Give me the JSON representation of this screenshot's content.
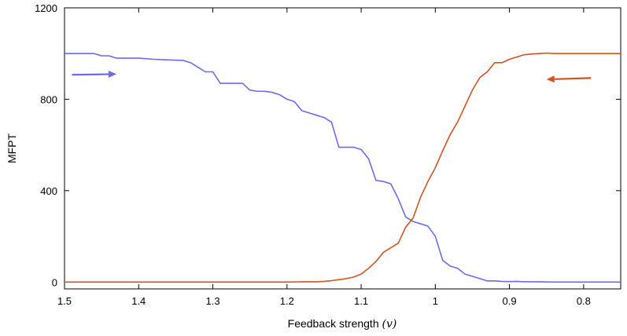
{
  "chart_data": {
    "type": "line",
    "title": "",
    "xlabel": "Feedback strength",
    "xlabel_symbol": "(v)",
    "ylabel": "MFPT",
    "xlim": [
      1.5,
      0.75
    ],
    "x_reversed": true,
    "ylim": [
      -30,
      1200
    ],
    "x_ticks": [
      1.5,
      1.4,
      1.3,
      1.2,
      1.1,
      1.0,
      0.9,
      0.8
    ],
    "x_tick_labels": [
      "1.5",
      "1.4",
      "1.3",
      "1.2",
      "1.1",
      "1",
      "0.9",
      "0.8"
    ],
    "y_ticks": [
      0,
      400,
      800,
      1200
    ],
    "y_tick_labels": [
      "0",
      "400",
      "800",
      "1200"
    ],
    "grid": false,
    "series": [
      {
        "color": "#6b6beb",
        "direction": "decreasing-v",
        "x": [
          1.5,
          1.47,
          1.46,
          1.45,
          1.44,
          1.43,
          1.42,
          1.4,
          1.38,
          1.36,
          1.34,
          1.33,
          1.32,
          1.31,
          1.3,
          1.29,
          1.28,
          1.27,
          1.26,
          1.25,
          1.24,
          1.23,
          1.22,
          1.21,
          1.2,
          1.19,
          1.18,
          1.17,
          1.16,
          1.15,
          1.14,
          1.13,
          1.12,
          1.11,
          1.1,
          1.09,
          1.08,
          1.07,
          1.06,
          1.05,
          1.04,
          1.03,
          1.02,
          1.01,
          1.0,
          0.99,
          0.98,
          0.97,
          0.96,
          0.95,
          0.94,
          0.93,
          0.92,
          0.91,
          0.9,
          0.89,
          0.88,
          0.86,
          0.84,
          0.82,
          0.8,
          0.78,
          0.75
        ],
        "y": [
          1000,
          1000,
          1000,
          990,
          990,
          980,
          980,
          980,
          975,
          972,
          970,
          960,
          940,
          920,
          920,
          870,
          870,
          870,
          870,
          840,
          835,
          835,
          830,
          820,
          800,
          790,
          750,
          740,
          730,
          720,
          700,
          590,
          590,
          590,
          580,
          540,
          445,
          440,
          430,
          365,
          285,
          265,
          255,
          245,
          200,
          95,
          70,
          60,
          35,
          25,
          15,
          5,
          5,
          3,
          2,
          3,
          1,
          1,
          0,
          0,
          0,
          0,
          0
        ]
      },
      {
        "color": "#d2531f",
        "direction": "increasing-v",
        "x": [
          1.5,
          1.45,
          1.4,
          1.35,
          1.3,
          1.25,
          1.2,
          1.18,
          1.16,
          1.15,
          1.14,
          1.12,
          1.11,
          1.1,
          1.09,
          1.08,
          1.07,
          1.06,
          1.05,
          1.04,
          1.03,
          1.02,
          1.01,
          1.0,
          0.99,
          0.98,
          0.97,
          0.96,
          0.95,
          0.94,
          0.93,
          0.92,
          0.91,
          0.9,
          0.89,
          0.88,
          0.87,
          0.86,
          0.85,
          0.84,
          0.8,
          0.75
        ],
        "y": [
          0,
          0,
          0,
          0,
          0,
          0,
          0,
          1,
          1,
          3,
          6,
          15,
          22,
          35,
          60,
          90,
          130,
          150,
          170,
          240,
          280,
          370,
          440,
          500,
          575,
          645,
          700,
          770,
          840,
          895,
          920,
          960,
          960,
          975,
          985,
          995,
          998,
          1000,
          1002,
          1000,
          1000,
          1000
        ]
      }
    ],
    "annotations": [
      {
        "type": "arrow",
        "color": "#6b6beb",
        "from": [
          1.49,
          907
        ],
        "to": [
          1.43,
          910
        ]
      },
      {
        "type": "arrow",
        "color": "#d2531f",
        "from": [
          0.79,
          893
        ],
        "to": [
          0.85,
          887
        ]
      }
    ]
  }
}
